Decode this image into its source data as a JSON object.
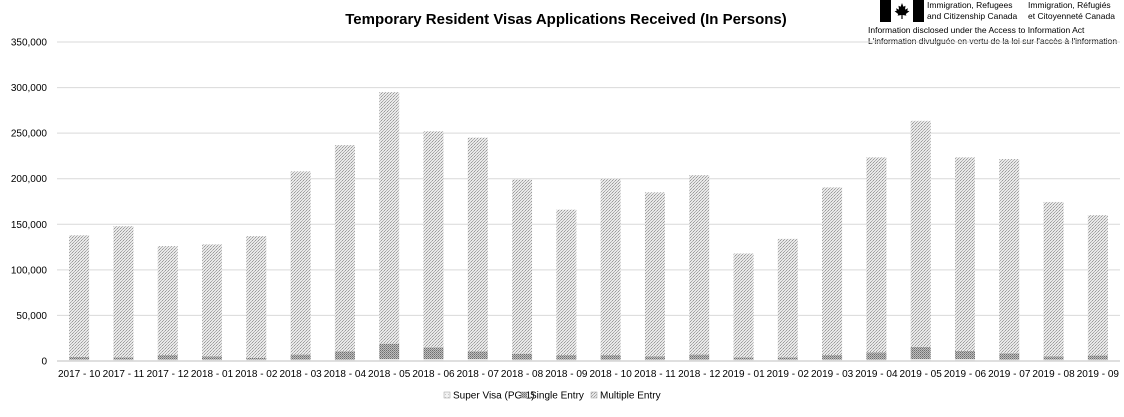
{
  "header": {
    "dept_en_line1": "Immigration, Refugees",
    "dept_en_line2": "and Citizenship Canada",
    "dept_fr_line1": "Immigration, Réfugiés",
    "dept_fr_line2": "et Citoyenneté Canada",
    "ati_en": "Information disclosed under the Access to Information Act",
    "ati_fr": "L'information divulguée en vertu de la loi sur l'accès à l'information"
  },
  "chart_data": {
    "type": "bar",
    "stacked": true,
    "title": "Temporary Resident Visas Applications Received (In Persons)",
    "xlabel": "",
    "ylabel": "",
    "ylim": [
      0,
      350000
    ],
    "yticks": [
      0,
      50000,
      100000,
      150000,
      200000,
      250000,
      300000,
      350000
    ],
    "ytick_labels": [
      "0",
      "50,000",
      "100,000",
      "150,000",
      "200,000",
      "250,000",
      "300,000",
      "350,000"
    ],
    "grid": true,
    "legend_position": "bottom",
    "categories": [
      "2017 - 10",
      "2017 - 11",
      "2017 - 12",
      "2018 - 01",
      "2018 - 02",
      "2018 - 03",
      "2018 - 04",
      "2018 - 05",
      "2018 - 06",
      "2018 - 07",
      "2018 - 08",
      "2018 - 09",
      "2018 - 10",
      "2018 - 11",
      "2018 - 12",
      "2019 - 01",
      "2019 - 02",
      "2019 - 03",
      "2019 - 04",
      "2019 - 05",
      "2019 - 06",
      "2019 - 07",
      "2019 - 08",
      "2019 - 09"
    ],
    "series": [
      {
        "name": "Super Visa (PG-1)",
        "color": "#e6e6e6",
        "values": [
          1500,
          1500,
          1500,
          1500,
          1500,
          1500,
          1500,
          2000,
          2000,
          2000,
          1500,
          1500,
          1500,
          1500,
          1500,
          1500,
          1500,
          1500,
          1500,
          2000,
          2000,
          1500,
          1500,
          1500
        ]
      },
      {
        "name": "Single Entry",
        "color": "#b3b3b3",
        "values": [
          3000,
          2500,
          5000,
          3500,
          2000,
          5500,
          9000,
          17000,
          13000,
          8500,
          6500,
          5000,
          5000,
          3500,
          5500,
          2500,
          2500,
          5000,
          8000,
          13500,
          9000,
          7000,
          3500,
          4500
        ]
      },
      {
        "name": "Multiple Entry",
        "color": "#cfcfcf",
        "values": [
          133500,
          144000,
          119500,
          123000,
          133500,
          201000,
          226500,
          276000,
          237000,
          234500,
          191000,
          159500,
          193500,
          180000,
          197000,
          114000,
          130000,
          184000,
          214000,
          248000,
          212500,
          213000,
          169500,
          154000
        ]
      }
    ]
  }
}
